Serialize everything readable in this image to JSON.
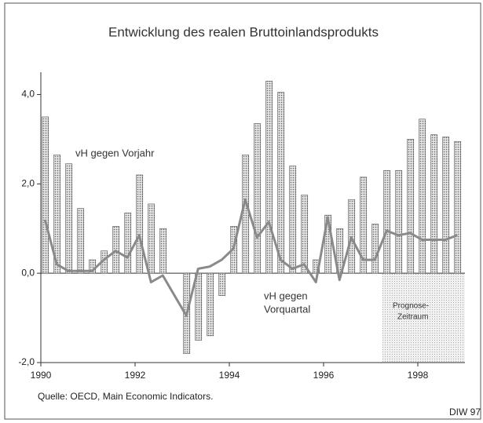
{
  "chart_data": {
    "type": "bar_line",
    "title": "Entwicklung des realen Bruttoinlandsprodukts",
    "annotations": [
      "vH gegen Vorjahr",
      "vH gegen",
      "Vorquartal",
      "Prognose-",
      "Zeitraum"
    ],
    "source": "Quelle: OECD, Main Economic Indicators.",
    "credit": "DIW 97",
    "x": [
      1990,
      1990.25,
      1990.5,
      1990.75,
      1991,
      1991.25,
      1991.5,
      1991.75,
      1992,
      1992.25,
      1992.5,
      1992.75,
      1993,
      1993.25,
      1993.5,
      1993.75,
      1994,
      1994.25,
      1994.5,
      1994.75,
      1995,
      1995.25,
      1995.5,
      1995.75,
      1996,
      1996.25,
      1996.5,
      1996.75,
      1997,
      1997.25,
      1997.5,
      1997.75,
      1998,
      1998.25,
      1998.5,
      1998.75
    ],
    "series": [
      {
        "name": "vH gegen Vorjahr",
        "kind": "bar",
        "color": "#c8c8c8",
        "values": [
          3.5,
          2.65,
          2.45,
          1.45,
          0.3,
          0.5,
          1.05,
          1.35,
          2.2,
          1.55,
          1.0,
          0,
          -1.8,
          -1.5,
          -1.4,
          -0.5,
          1.05,
          2.65,
          3.35,
          4.3,
          4.05,
          2.4,
          1.75,
          0.3,
          1.3,
          1.0,
          1.65,
          2.15,
          1.1,
          2.3,
          2.3,
          3.0,
          3.45,
          3.1,
          3.05,
          2.95
        ]
      },
      {
        "name": "vH gegen Vorquartal",
        "kind": "line",
        "color": "#8a8a8a",
        "values": [
          1.2,
          0.2,
          0.05,
          0.05,
          0.05,
          0.3,
          0.5,
          0.35,
          0.85,
          -0.2,
          -0.05,
          -0.5,
          -0.95,
          0.1,
          0.15,
          0.3,
          0.55,
          1.65,
          0.8,
          1.15,
          0.3,
          0.1,
          0.2,
          -0.2,
          1.25,
          -0.15,
          0.8,
          0.3,
          0.3,
          0.95,
          0.85,
          0.9,
          0.75,
          0.75,
          0.75,
          0.85
        ]
      }
    ],
    "forecast_start": 1997.25,
    "xlim": [
      1990,
      1999
    ],
    "xticks": [
      1990,
      1992,
      1994,
      1996,
      1998
    ],
    "ylim": [
      -2.0,
      4.5
    ],
    "yticks": [
      {
        "value": -2.0,
        "label": "-2,0"
      },
      {
        "value": 0,
        "label": "0,0"
      },
      {
        "value": 2.0,
        "label": "2,0"
      },
      {
        "value": 4.0,
        "label": "4,0"
      }
    ]
  }
}
